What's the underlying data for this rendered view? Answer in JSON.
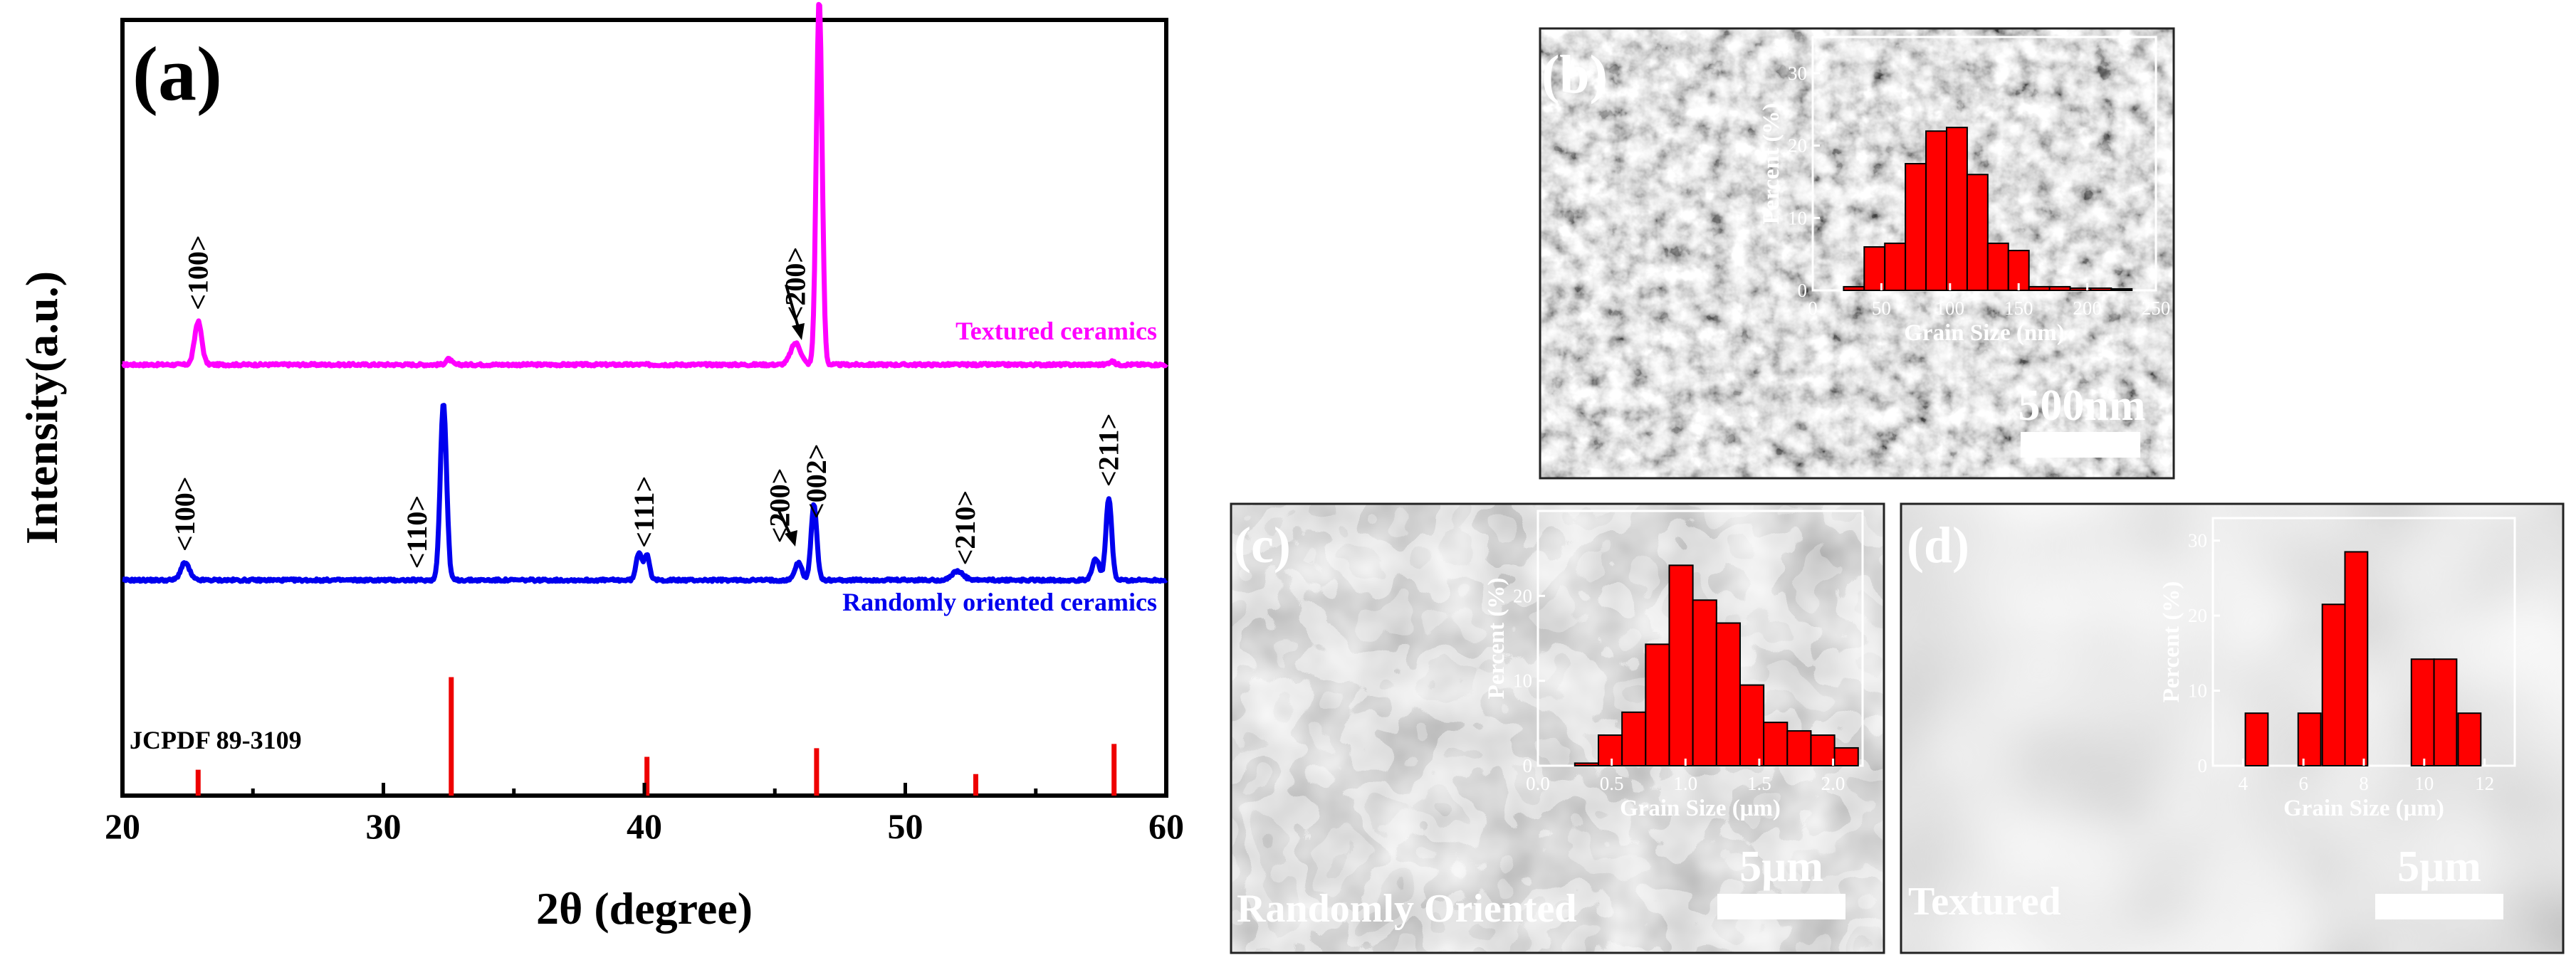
{
  "colors": {
    "textured": "#ff00ff",
    "random": "#0000ee",
    "reference": "#ee0000",
    "hist_bar": "#ff0000",
    "sem_dark": "#3f3f3f",
    "sem_light": "#bdbdbd"
  },
  "chart_data": [
    {
      "type": "line",
      "panel": "(a)",
      "title": "",
      "xlabel": "2θ (degree)",
      "ylabel": "Intensity(a.u.)",
      "xlim": [
        20,
        60
      ],
      "ylim": [
        0,
        3.6
      ],
      "xticks": [
        20,
        30,
        40,
        50,
        60
      ],
      "grid": false,
      "series": [
        {
          "name": "Textured ceramics",
          "label": "Textured ceramics",
          "color": "#ff00ff",
          "baseline": 2.0,
          "peaks": [
            [
              22.9,
              0.2,
              0.25
            ],
            [
              32.5,
              0.025,
              0.2
            ],
            [
              45.8,
              0.1,
              0.35
            ],
            [
              46.7,
              1.7,
              0.2
            ],
            [
              57.9,
              0.015,
              0.2
            ]
          ],
          "labels": [
            {
              "text": "<100>",
              "x": 22.9
            },
            {
              "text": "<200>",
              "x": 45.8
            },
            {
              "text": "<002>",
              "x": 46.7
            }
          ]
        },
        {
          "name": "Randomly oriented ceramics",
          "label": "Randomly oriented ceramics",
          "color": "#0000ee",
          "baseline": 1.0,
          "peaks": [
            [
              22.4,
              0.08,
              0.3
            ],
            [
              32.3,
              0.82,
              0.22
            ],
            [
              39.8,
              0.13,
              0.2
            ],
            [
              40.1,
              0.12,
              0.18
            ],
            [
              45.9,
              0.08,
              0.25
            ],
            [
              46.5,
              0.35,
              0.2
            ],
            [
              52.0,
              0.04,
              0.4
            ],
            [
              57.3,
              0.1,
              0.25
            ],
            [
              57.8,
              0.38,
              0.2
            ]
          ],
          "labels": [
            {
              "text": "<100>",
              "x": 22.4
            },
            {
              "text": "<110>",
              "x": 31.3
            },
            {
              "text": "<111>",
              "x": 40.0
            },
            {
              "text": "<200>",
              "x": 45.2
            },
            {
              "text": "<002>",
              "x": 46.6
            },
            {
              "text": "<210>",
              "x": 52.3
            },
            {
              "text": "<211>",
              "x": 57.8
            }
          ]
        }
      ],
      "reference": {
        "name": "JCPDF 89-3109",
        "label": "JCPDF 89-3109",
        "color": "#ee0000",
        "lines": [
          [
            22.9,
            0.12
          ],
          [
            32.6,
            0.55
          ],
          [
            40.1,
            0.18
          ],
          [
            46.6,
            0.22
          ],
          [
            52.7,
            0.1
          ],
          [
            58.0,
            0.24
          ]
        ]
      }
    },
    {
      "type": "bar",
      "panel": "(b)",
      "xlabel": "Grain Size (nm)",
      "ylabel": "Percent (%)",
      "xlim": [
        0,
        250
      ],
      "ylim": [
        0,
        35
      ],
      "xticks": [
        0,
        50,
        100,
        150,
        200,
        250
      ],
      "yticks": [
        0,
        10,
        20,
        30
      ],
      "bin_width": 15,
      "bins": [
        30,
        45,
        60,
        75,
        90,
        105,
        120,
        135,
        150,
        165,
        180,
        195,
        210,
        225
      ],
      "values": [
        0.5,
        6,
        6.5,
        17.5,
        22,
        22.5,
        16,
        6.5,
        5.5,
        0.5,
        0.5,
        0.3,
        0.3,
        0.2
      ]
    },
    {
      "type": "bar",
      "panel": "(c)",
      "xlabel": "Grain Size (μm)",
      "ylabel": "Percent (%)",
      "xlim": [
        0.0,
        2.2
      ],
      "ylim": [
        0,
        30
      ],
      "xticks": [
        0.0,
        0.5,
        1.0,
        1.5,
        2.0
      ],
      "yticks": [
        0,
        10,
        20
      ],
      "bin_width": 0.16,
      "bins": [
        0.33,
        0.49,
        0.65,
        0.81,
        0.97,
        1.13,
        1.29,
        1.45,
        1.61,
        1.77,
        1.93,
        2.09
      ],
      "values": [
        0.3,
        3.6,
        6.3,
        14.3,
        23.6,
        19.5,
        16.8,
        9.5,
        5.1,
        4.1,
        3.6,
        2.1
      ]
    },
    {
      "type": "bar",
      "panel": "(d)",
      "xlabel": "Grain Size (μm)",
      "ylabel": "Percent (%)",
      "xlim": [
        3,
        13
      ],
      "ylim": [
        0,
        33
      ],
      "xticks": [
        4,
        6,
        8,
        10,
        12
      ],
      "yticks": [
        0,
        10,
        20,
        30
      ],
      "bin_width": 0.75,
      "bins": [
        4.45,
        6.2,
        7.0,
        7.75,
        9.95,
        10.7,
        11.5
      ],
      "values": [
        7,
        7,
        21.5,
        28.5,
        14.2,
        14.2,
        7
      ]
    }
  ],
  "panels": {
    "a": {
      "label": "(a)",
      "textured_label": "Textured ceramics",
      "random_label": "Randomly oriented ceramics",
      "reference_label": "JCPDF 89-3109"
    },
    "b": {
      "label": "(b)",
      "scale_bar": "500nm"
    },
    "c": {
      "label": "(c)",
      "scale_bar": "5μm",
      "caption": "Randomly Oriented"
    },
    "d": {
      "label": "(d)",
      "scale_bar": "5μm",
      "caption": "Textured"
    }
  }
}
